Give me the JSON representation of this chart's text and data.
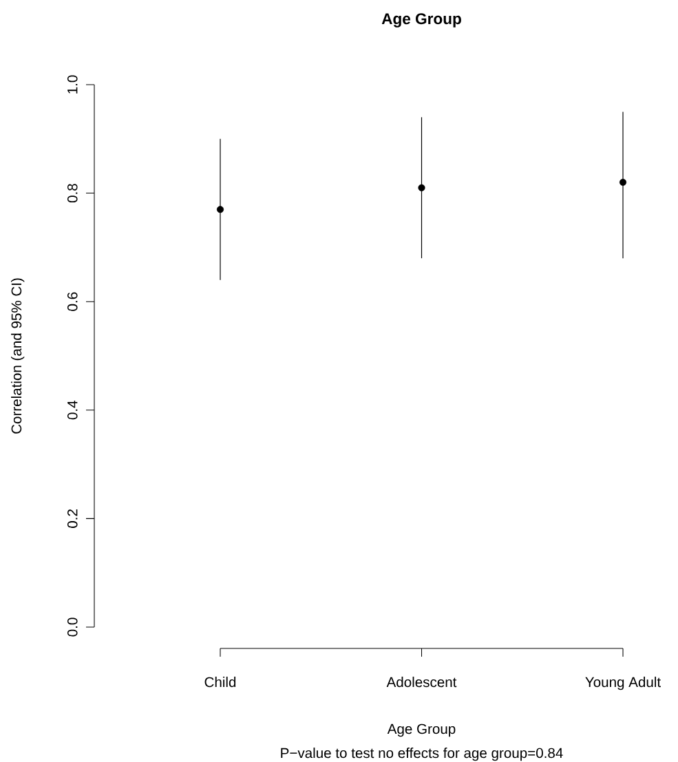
{
  "chart_data": {
    "type": "scatter",
    "title": "Age Group",
    "xlabel": "Age Group",
    "ylabel": "Correlation (and 95% CI)",
    "annotations": [
      "P−value to test no effects for age group=0.84"
    ],
    "categories": [
      "Child",
      "Adolescent",
      "Young Adult"
    ],
    "values": [
      0.77,
      0.81,
      0.82
    ],
    "errors": [
      [
        0.64,
        0.9
      ],
      [
        0.68,
        0.94
      ],
      [
        0.68,
        0.95
      ]
    ],
    "color": "#000000",
    "marker": "circle",
    "ylim": [
      0,
      1
    ],
    "yticks": [
      {
        "value": 0,
        "label": "0.0"
      },
      0.2,
      0.4,
      0.6,
      0.8,
      {
        "value": 1,
        "label": "1.0"
      }
    ]
  }
}
